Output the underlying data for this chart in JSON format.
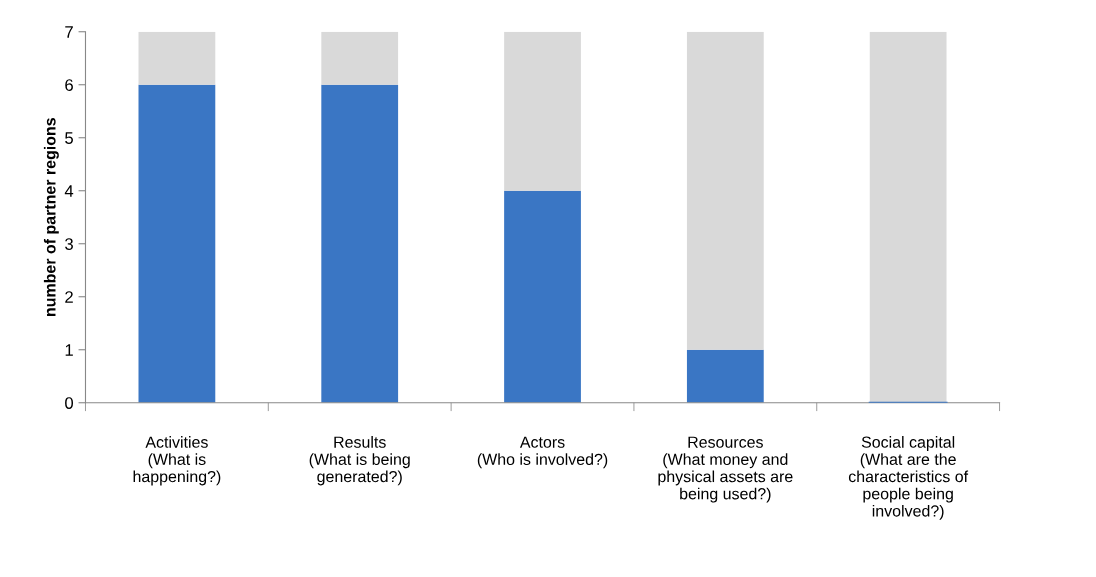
{
  "chart_data": {
    "type": "bar",
    "stacked": true,
    "ylabel": "number of partner regions",
    "categories": [
      "Activities\n(What is\nhappening?)",
      "Results\n(What is being\ngenerated?)",
      "Actors\n(Who is involved?)",
      "Resources\n(What money and\nphysical assets are\nbeing used?)",
      "Social capital\n(What are the\ncharacteristics of\npeople being\ninvolved?)"
    ],
    "series": [
      {
        "color": "#3a76c4",
        "values": [
          6,
          6,
          4,
          1,
          0
        ]
      },
      {
        "color": "#d9d9d9",
        "values": [
          1,
          1,
          3,
          6,
          7
        ]
      }
    ],
    "ylim": [
      0,
      7
    ],
    "yticks": [
      0,
      1,
      2,
      3,
      4,
      5,
      6,
      7
    ],
    "grid": false
  }
}
